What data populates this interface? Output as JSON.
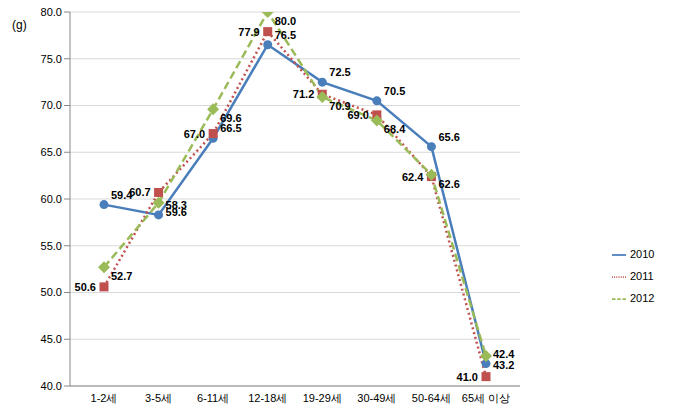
{
  "chart_data": {
    "type": "line",
    "y_label": "(g)",
    "categories": [
      "1-2세",
      "3-5세",
      "6-11세",
      "12-18세",
      "19-29세",
      "30-49세",
      "50-64세",
      "65세 이상"
    ],
    "series": [
      {
        "name": "2010",
        "color": "#4a7ebb",
        "marker": "circle",
        "line_style": "solid",
        "values": [
          59.4,
          58.3,
          66.5,
          76.5,
          72.5,
          70.5,
          65.6,
          42.4
        ],
        "value_labels": [
          "59.4",
          "58.3",
          "66.5",
          "76.5",
          "72.5",
          "70.5",
          "65.6",
          "42.4"
        ]
      },
      {
        "name": "2011",
        "color": "#c0504d",
        "marker": "square",
        "line_style": "dotted",
        "values": [
          50.6,
          60.7,
          67.0,
          77.9,
          71.2,
          69.0,
          62.4,
          41.0
        ],
        "value_labels": [
          "50.6",
          "60.7",
          "67.0",
          "77.9",
          "71.2",
          "69.0",
          "62.4",
          "41.0"
        ]
      },
      {
        "name": "2012",
        "color": "#9bbb59",
        "marker": "diamond",
        "line_style": "dashed",
        "values": [
          52.7,
          59.6,
          69.6,
          80.0,
          70.9,
          68.4,
          62.6,
          43.2
        ],
        "value_labels": [
          "52.7",
          "59.6",
          "69.6",
          "80.0",
          "70.9",
          "68.4",
          "62.6",
          "43.2"
        ]
      }
    ],
    "ylim": [
      40,
      80
    ],
    "yticks": [
      {
        "value": 40,
        "label": "40.0"
      },
      {
        "value": 45,
        "label": "45.0"
      },
      {
        "value": 50,
        "label": "50.0"
      },
      {
        "value": 55,
        "label": "55.0"
      },
      {
        "value": 60,
        "label": "60.0"
      },
      {
        "value": 65,
        "label": "65.0"
      },
      {
        "value": 70,
        "label": "70.0"
      },
      {
        "value": 75,
        "label": "75.0"
      },
      {
        "value": 80,
        "label": "80.0"
      }
    ],
    "grid": true,
    "legend": "right",
    "data_labels": true
  }
}
